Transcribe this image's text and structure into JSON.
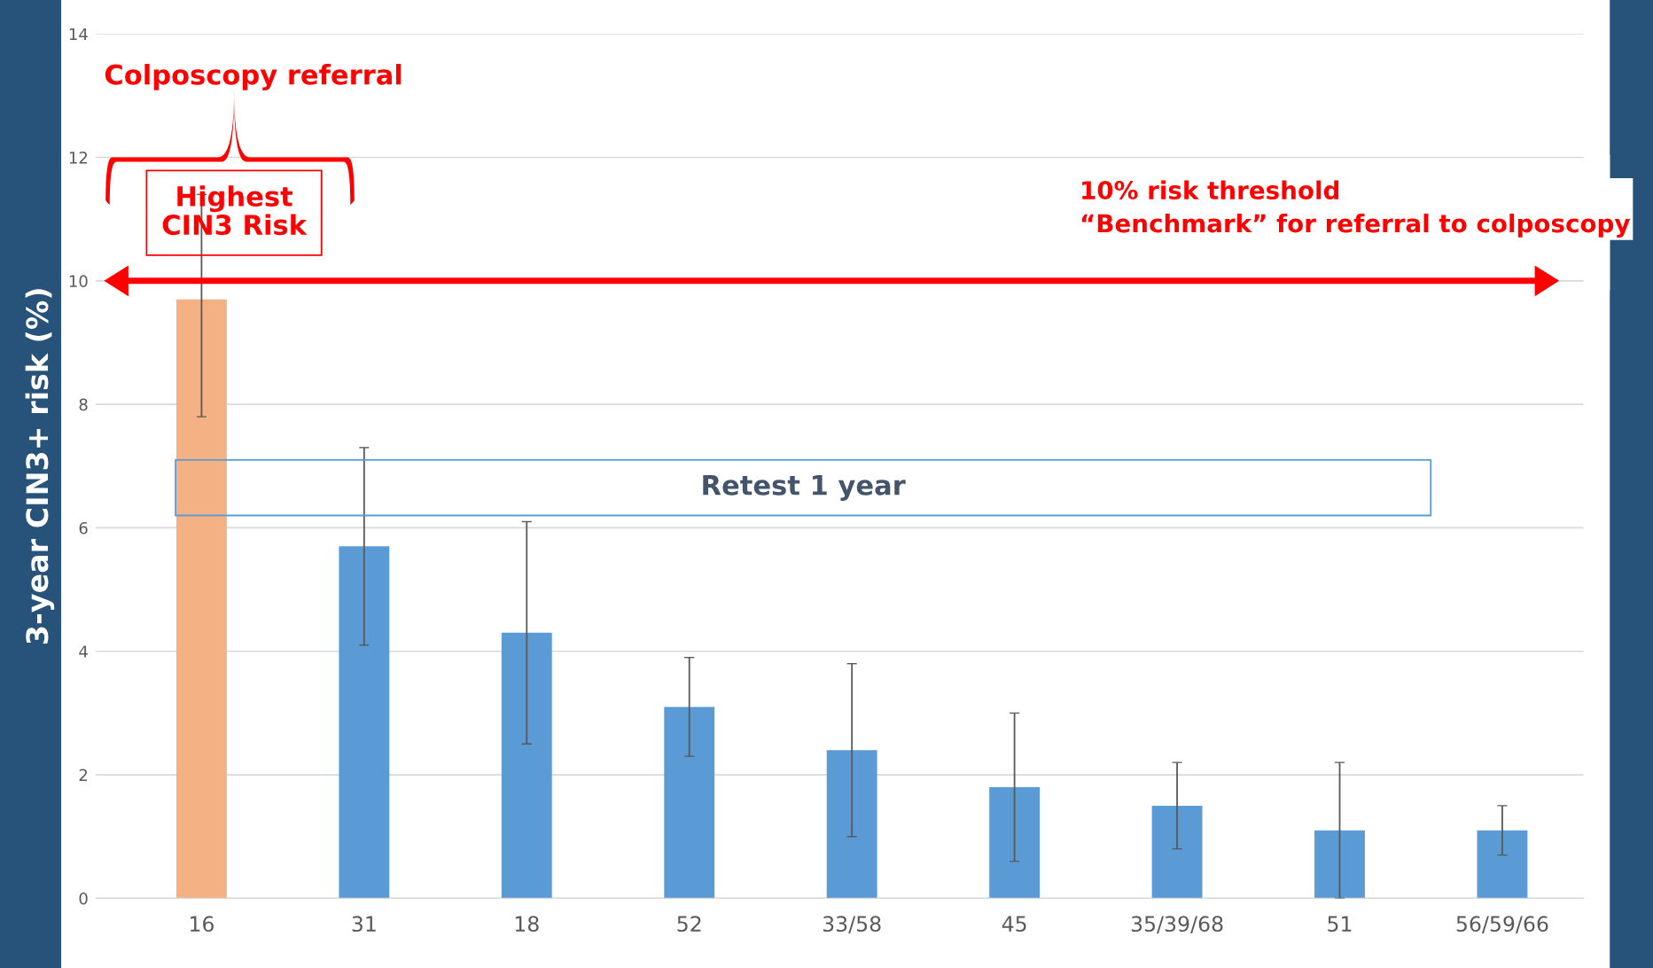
{
  "chart_data": {
    "type": "bar",
    "ylabel": "3-year CIN3+ risk (%)",
    "categories": [
      "16",
      "31",
      "18",
      "52",
      "33/58",
      "45",
      "35/39/68",
      "51",
      "56/59/66"
    ],
    "values": [
      9.7,
      5.7,
      4.3,
      3.1,
      2.4,
      1.8,
      1.5,
      1.1,
      1.1
    ],
    "colors": [
      "#f4b183",
      "#5b9bd5",
      "#5b9bd5",
      "#5b9bd5",
      "#5b9bd5",
      "#5b9bd5",
      "#5b9bd5",
      "#5b9bd5",
      "#5b9bd5"
    ],
    "errors": [
      [
        7.8,
        11.4
      ],
      [
        4.1,
        7.3
      ],
      [
        2.5,
        6.1
      ],
      [
        2.3,
        3.9
      ],
      [
        1.0,
        3.8
      ],
      [
        0.6,
        3.0
      ],
      [
        0.8,
        2.2
      ],
      [
        0.0,
        2.2
      ],
      [
        0.7,
        1.5
      ]
    ],
    "ylim": [
      0,
      14
    ],
    "yticks": [
      0,
      2,
      4,
      6,
      8,
      10,
      12,
      14
    ],
    "grid": "y",
    "legend": false,
    "ref_lines": [
      {
        "axis": "y",
        "value": 10,
        "label": "10% risk threshold\n“Benchmark” for referral to colposcopy",
        "color": "#ff0000"
      }
    ],
    "annotations": [
      "Colposcopy referral",
      "Highest\nCIN3 Risk",
      "Retest 1 year"
    ]
  }
}
